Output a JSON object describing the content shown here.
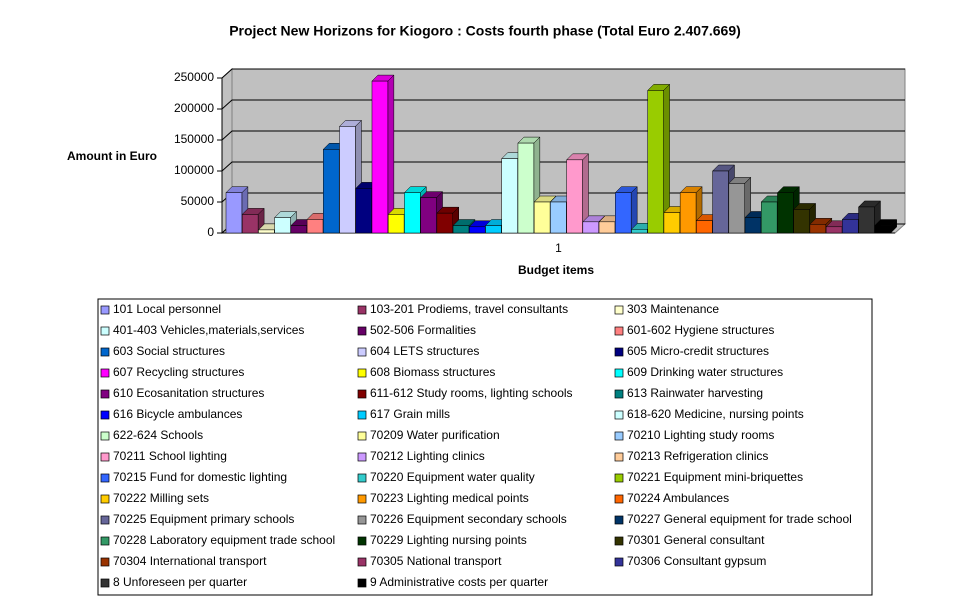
{
  "chart_data": {
    "type": "bar3d",
    "title": "Project New Horizons for Kiogoro : Costs fourth phase (Total Euro 2.407.669)",
    "x_label": "Budget items",
    "y_label": "Amount in Euro",
    "categories": [
      "1"
    ],
    "ylim": [
      0,
      250000
    ],
    "yticks": [
      0,
      50000,
      100000,
      150000,
      200000,
      250000
    ],
    "grid": true,
    "legend": "bottom",
    "series": [
      {
        "name": "101 Local personnel",
        "color": "#9999ff",
        "values": [
          65000
        ]
      },
      {
        "name": "103-201 Prodiems, travel consultants",
        "color": "#993366",
        "values": [
          30000
        ]
      },
      {
        "name": "303 Maintenance",
        "color": "#ffffcc",
        "values": [
          5000
        ]
      },
      {
        "name": "401-403 Vehicles,materials,services",
        "color": "#ccffff",
        "values": [
          25000
        ]
      },
      {
        "name": "502-506 Formalities",
        "color": "#660066",
        "values": [
          12000
        ]
      },
      {
        "name": "601-602 Hygiene structures",
        "color": "#ff8080",
        "values": [
          22000
        ]
      },
      {
        "name": "603 Social structures",
        "color": "#0066cc",
        "values": [
          135000
        ]
      },
      {
        "name": "604 LETS structures",
        "color": "#ccccff",
        "values": [
          172000
        ]
      },
      {
        "name": "605 Micro-credit structures",
        "color": "#000080",
        "values": [
          72000
        ]
      },
      {
        "name": "607 Recycling structures",
        "color": "#ff00ff",
        "values": [
          245000
        ]
      },
      {
        "name": "608 Biomass structures",
        "color": "#ffff00",
        "values": [
          30000
        ]
      },
      {
        "name": "609 Drinking water structures",
        "color": "#00ffff",
        "values": [
          65000
        ]
      },
      {
        "name": "610 Ecosanitation structures",
        "color": "#800080",
        "values": [
          57000
        ]
      },
      {
        "name": "611-612 Study rooms, lighting schools",
        "color": "#800000",
        "values": [
          32000
        ]
      },
      {
        "name": "613 Rainwater harvesting",
        "color": "#008080",
        "values": [
          12000
        ]
      },
      {
        "name": "616 Bicycle ambulances",
        "color": "#0000ff",
        "values": [
          10000
        ]
      },
      {
        "name": "617 Grain mills",
        "color": "#00ccff",
        "values": [
          12000
        ]
      },
      {
        "name": "618-620 Medicine, nursing points",
        "color": "#ccffff",
        "values": [
          120000
        ]
      },
      {
        "name": "622-624 Schools",
        "color": "#ccffcc",
        "values": [
          145000
        ]
      },
      {
        "name": "70209 Water purification",
        "color": "#ffff99",
        "values": [
          50000
        ]
      },
      {
        "name": "70210 Lighting study rooms",
        "color": "#99ccff",
        "values": [
          50000
        ]
      },
      {
        "name": "70211 School lighting",
        "color": "#ff99cc",
        "values": [
          118000
        ]
      },
      {
        "name": "70212 Lighting clinics",
        "color": "#cc99ff",
        "values": [
          18000
        ]
      },
      {
        "name": "70213 Refrigeration clinics",
        "color": "#ffcc99",
        "values": [
          18000
        ]
      },
      {
        "name": "70215 Fund for domestic lighting",
        "color": "#3366ff",
        "values": [
          65000
        ]
      },
      {
        "name": "70220 Equipment water quality",
        "color": "#33cccc",
        "values": [
          6000
        ]
      },
      {
        "name": "70221 Equipment mini-briquettes",
        "color": "#99cc00",
        "values": [
          230000
        ]
      },
      {
        "name": "70222 Milling sets",
        "color": "#ffcc00",
        "values": [
          33000
        ]
      },
      {
        "name": "70223 Lighting medical points",
        "color": "#ff9900",
        "values": [
          65000
        ]
      },
      {
        "name": "70224 Ambulances",
        "color": "#ff6600",
        "values": [
          20000
        ]
      },
      {
        "name": "70225 Equipment primary schools",
        "color": "#666699",
        "values": [
          100000
        ]
      },
      {
        "name": "70226 Equipment secondary schools",
        "color": "#969696",
        "values": [
          80000
        ]
      },
      {
        "name": "70227 General equipment for trade school",
        "color": "#003366",
        "values": [
          25000
        ]
      },
      {
        "name": "70228 Laboratory equipment trade school",
        "color": "#339966",
        "values": [
          50000
        ]
      },
      {
        "name": "70229 Lighting nursing points",
        "color": "#003300",
        "values": [
          65000
        ]
      },
      {
        "name": "70301 General consultant",
        "color": "#333300",
        "values": [
          38000
        ]
      },
      {
        "name": "70304 International transport",
        "color": "#993300",
        "values": [
          14000
        ]
      },
      {
        "name": "70305 National transport",
        "color": "#993366",
        "values": [
          10000
        ]
      },
      {
        "name": "70306 Consultant gypsum",
        "color": "#333399",
        "values": [
          22000
        ]
      },
      {
        "name": "8 Unforeseen per quarter",
        "color": "#333333",
        "values": [
          42000
        ]
      },
      {
        "name": "9 Administrative costs per quarter",
        "color": "#000000",
        "values": [
          12000
        ]
      }
    ]
  }
}
